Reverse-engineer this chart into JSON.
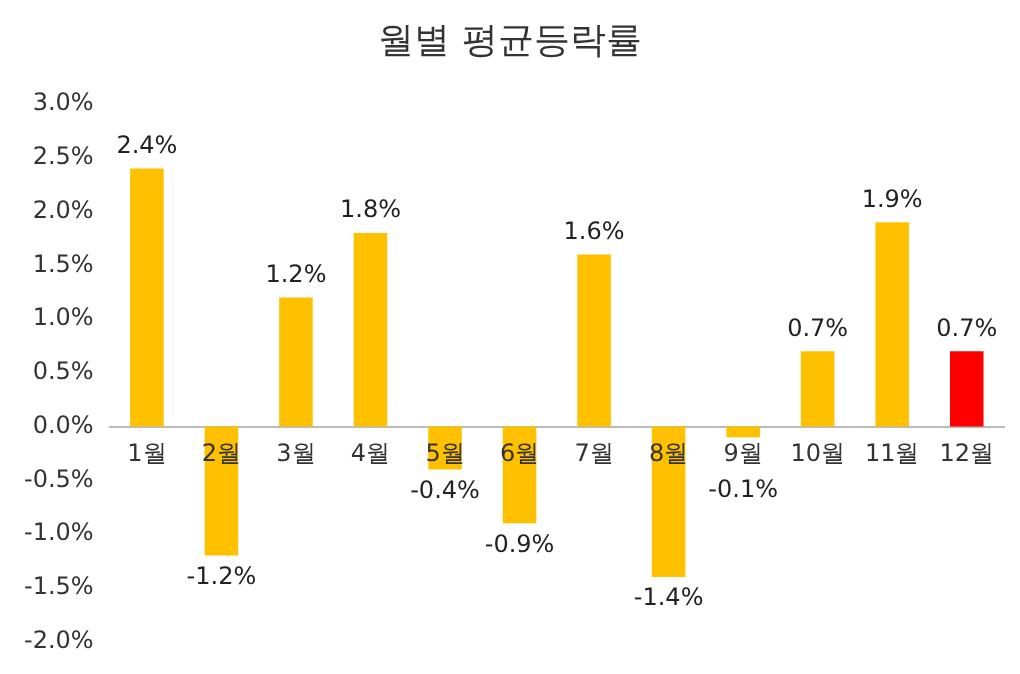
{
  "chart_data": {
    "type": "bar",
    "title": "월별 평균등락률",
    "categories": [
      "1월",
      "2월",
      "3월",
      "4월",
      "5월",
      "6월",
      "7월",
      "8월",
      "9월",
      "10월",
      "11월",
      "12월"
    ],
    "values": [
      2.4,
      -1.2,
      1.2,
      1.8,
      -0.4,
      -0.9,
      1.6,
      -1.4,
      -0.1,
      0.7,
      1.9,
      0.7
    ],
    "value_labels": [
      "2.4%",
      "-1.2%",
      "1.2%",
      "1.8%",
      "-0.4%",
      "-0.9%",
      "1.6%",
      "-1.4%",
      "-0.1%",
      "0.7%",
      "1.9%",
      "0.7%"
    ],
    "colors": [
      "#ffc000",
      "#ffc000",
      "#ffc000",
      "#ffc000",
      "#ffc000",
      "#ffc000",
      "#ffc000",
      "#ffc000",
      "#ffc000",
      "#ffc000",
      "#ffc000",
      "#ff0000"
    ],
    "ylim": [
      -2.0,
      3.0
    ],
    "yticks": [
      {
        "value": -2.0,
        "label": "-2.0%"
      },
      {
        "value": -1.5,
        "label": "-1.5%"
      },
      {
        "value": -1.0,
        "label": "-1.0%"
      },
      {
        "value": -0.5,
        "label": "-0.5%"
      },
      {
        "value": 0,
        "label": "0.0%"
      },
      {
        "value": 0.5,
        "label": "0.5%"
      },
      {
        "value": 1.0,
        "label": "1.0%"
      },
      {
        "value": 1.5,
        "label": "1.5%"
      },
      {
        "value": 2.0,
        "label": "2.0%"
      },
      {
        "value": 2.5,
        "label": "2.5%"
      },
      {
        "value": 3.0,
        "label": "3.0%"
      }
    ],
    "grid": false,
    "legend": false
  }
}
